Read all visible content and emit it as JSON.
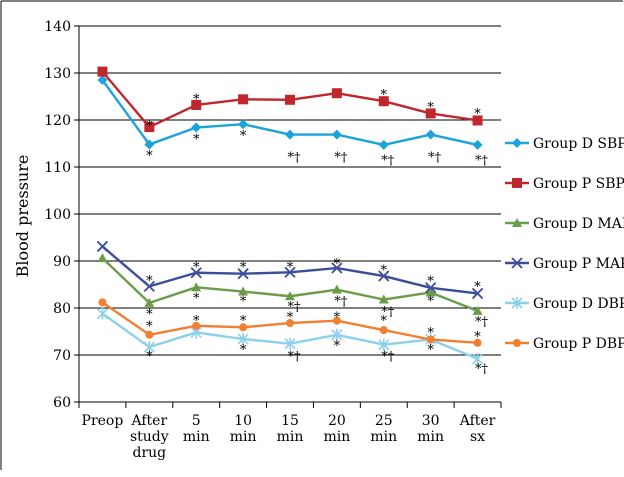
{
  "chart_data": {
    "type": "line",
    "title": "",
    "xlabel": "",
    "ylabel": "Blood pressure",
    "ylim": [
      60,
      140
    ],
    "yticks": [
      "60",
      "70",
      "80",
      "90",
      "100",
      "110",
      "120",
      "130",
      "140"
    ],
    "grid": "horizontal major gridlines",
    "legend_position": "right",
    "categories": [
      [
        "Preop"
      ],
      [
        "After",
        "study",
        "drug"
      ],
      [
        "5",
        "min"
      ],
      [
        "10",
        "min"
      ],
      [
        "15",
        "min"
      ],
      [
        "20",
        "min"
      ],
      [
        "25",
        "min"
      ],
      [
        "30",
        "min"
      ],
      [
        "After",
        "sx"
      ]
    ],
    "series": [
      {
        "name": "Group D SBP",
        "color": "#1ba3dc",
        "marker": "diamond",
        "values": [
          128.5,
          114.8,
          118.4,
          119.1,
          116.9,
          116.9,
          114.7,
          116.9,
          114.7
        ]
      },
      {
        "name": "Group P SBP",
        "color": "#c0272d",
        "marker": "square",
        "values": [
          130.3,
          118.5,
          123.2,
          124.4,
          124.3,
          125.7,
          124.0,
          121.4,
          119.9
        ]
      },
      {
        "name": "Group D MAP",
        "color": "#6a9c4a",
        "marker": "triangle",
        "values": [
          90.6,
          81.1,
          84.4,
          83.5,
          82.5,
          83.9,
          81.8,
          83.3,
          79.4
        ]
      },
      {
        "name": "Group P MAP",
        "color": "#3c4d9c",
        "marker": "x",
        "values": [
          93.1,
          84.6,
          87.5,
          87.3,
          87.6,
          88.5,
          86.8,
          84.3,
          83.1
        ]
      },
      {
        "name": "Group D DBP",
        "color": "#8dd0ea",
        "marker": "star",
        "values": [
          78.8,
          71.7,
          74.8,
          73.4,
          72.4,
          74.3,
          72.2,
          73.3,
          69.2
        ]
      },
      {
        "name": "Group P DBP",
        "color": "#f07f30",
        "marker": "circle",
        "values": [
          81.2,
          74.3,
          76.2,
          75.9,
          76.8,
          77.3,
          75.3,
          73.3,
          72.6
        ]
      }
    ],
    "annotations": [
      {
        "category": 1,
        "value": 118.9,
        "text": "*"
      },
      {
        "category": 1,
        "value": 112.6,
        "text": "*"
      },
      {
        "category": 2,
        "value": 124.6,
        "text": "*"
      },
      {
        "category": 2,
        "value": 116.1,
        "text": "*"
      },
      {
        "category": 3,
        "value": 116.8,
        "text": "*"
      },
      {
        "category": 4,
        "value": 112.2,
        "text": "*†"
      },
      {
        "category": 5,
        "value": 112.2,
        "text": "*†"
      },
      {
        "category": 6,
        "value": 125.5,
        "text": "*"
      },
      {
        "category": 6,
        "value": 111.6,
        "text": "*†"
      },
      {
        "category": 7,
        "value": 122.9,
        "text": "*"
      },
      {
        "category": 7,
        "value": 112.2,
        "text": "*†"
      },
      {
        "category": 8,
        "value": 121.5,
        "text": "*"
      },
      {
        "category": 8,
        "value": 111.6,
        "text": "*†"
      },
      {
        "category": 1,
        "value": 86.0,
        "text": "*"
      },
      {
        "category": 1,
        "value": 78.8,
        "text": "*"
      },
      {
        "category": 1,
        "value": 76.3,
        "text": "*"
      },
      {
        "category": 1,
        "value": 69.9,
        "text": "*"
      },
      {
        "category": 2,
        "value": 88.8,
        "text": "*"
      },
      {
        "category": 2,
        "value": 82.2,
        "text": "*"
      },
      {
        "category": 2,
        "value": 77.5,
        "text": "*"
      },
      {
        "category": 3,
        "value": 88.8,
        "text": "*"
      },
      {
        "category": 3,
        "value": 81.6,
        "text": "*"
      },
      {
        "category": 3,
        "value": 77.5,
        "text": "*"
      },
      {
        "category": 3,
        "value": 71.3,
        "text": "*"
      },
      {
        "category": 4,
        "value": 88.8,
        "text": "*"
      },
      {
        "category": 4,
        "value": 80.4,
        "text": "*†"
      },
      {
        "category": 4,
        "value": 78.2,
        "text": "*"
      },
      {
        "category": 4,
        "value": 69.9,
        "text": "*†"
      },
      {
        "category": 5,
        "value": 89.6,
        "text": "*"
      },
      {
        "category": 5,
        "value": 81.6,
        "text": "*†"
      },
      {
        "category": 5,
        "value": 78.2,
        "text": "*"
      },
      {
        "category": 5,
        "value": 72.1,
        "text": "*"
      },
      {
        "category": 6,
        "value": 88.2,
        "text": "*"
      },
      {
        "category": 6,
        "value": 79.4,
        "text": "*†"
      },
      {
        "category": 6,
        "value": 77.5,
        "text": "*"
      },
      {
        "category": 6,
        "value": 69.9,
        "text": "*†"
      },
      {
        "category": 7,
        "value": 85.9,
        "text": "*"
      },
      {
        "category": 7,
        "value": 81.6,
        "text": "*"
      },
      {
        "category": 7,
        "value": 74.9,
        "text": "*"
      },
      {
        "category": 7,
        "value": 71.3,
        "text": "*"
      },
      {
        "category": 8,
        "value": 84.7,
        "text": "*"
      },
      {
        "category": 8,
        "value": 77.2,
        "text": "*†"
      },
      {
        "category": 8,
        "value": 74.0,
        "text": "*"
      },
      {
        "category": 8,
        "value": 67.2,
        "text": "*†"
      }
    ]
  }
}
